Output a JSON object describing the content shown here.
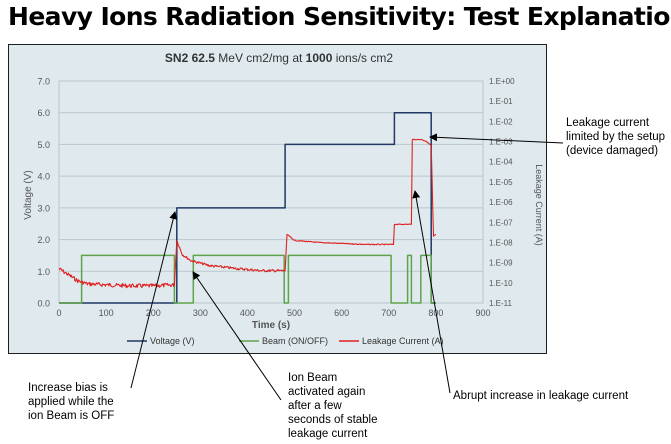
{
  "slide": {
    "title": "Heavy Ions Radiation Sensitivity: Test Explanation"
  },
  "chart_data": {
    "type": "line",
    "title": {
      "prefix": "SN2 ",
      "let_value": "62.5",
      "let_unit": " MeV cm2/mg at ",
      "flux_value": "1000",
      "flux_unit": " ions/s cm2"
    },
    "xlabel": "Time (s)",
    "ylabel_left": "Voltage (V)",
    "ylabel_right": "Leakage Current (A)",
    "xlim": [
      0,
      900
    ],
    "ylim_left": [
      0,
      7
    ],
    "ylim_right_log10": [
      -11,
      0
    ],
    "x_ticks": [
      "0",
      "100",
      "200",
      "300",
      "400",
      "500",
      "600",
      "700",
      "800",
      "900"
    ],
    "y_left_ticks": [
      "0.0",
      "1.0",
      "2.0",
      "3.0",
      "4.0",
      "5.0",
      "6.0",
      "7.0"
    ],
    "y_right_ticks": [
      "1.E-11",
      "1.E-10",
      "1.E-09",
      "1.E-08",
      "1.E-07",
      "1.E-06",
      "1.E-05",
      "1.E-04",
      "1.E-03",
      "1.E-02",
      "1.E-01",
      "1.E+00"
    ],
    "grid": "horizontal",
    "legend_position": "bottom",
    "series": [
      {
        "name": "Voltage (V)",
        "axis": "left",
        "color": "#1f3864",
        "points": [
          [
            0,
            0
          ],
          [
            250,
            0
          ],
          [
            250,
            3
          ],
          [
            480,
            3
          ],
          [
            480,
            5
          ],
          [
            712,
            5
          ],
          [
            712,
            6
          ],
          [
            790,
            6
          ],
          [
            790,
            0
          ],
          [
            800,
            0
          ]
        ]
      },
      {
        "name": "Beam (ON/OFF)",
        "axis": "left",
        "color": "#5ea34a",
        "points": [
          [
            0,
            0
          ],
          [
            48,
            0
          ],
          [
            48,
            1.5
          ],
          [
            245,
            1.5
          ],
          [
            245,
            0
          ],
          [
            285,
            0
          ],
          [
            285,
            1.5
          ],
          [
            478,
            1.5
          ],
          [
            478,
            0
          ],
          [
            487,
            0
          ],
          [
            487,
            1.5
          ],
          [
            705,
            1.5
          ],
          [
            705,
            0
          ],
          [
            740,
            0
          ],
          [
            740,
            1.5
          ],
          [
            748,
            1.5
          ],
          [
            748,
            0
          ],
          [
            768,
            0
          ],
          [
            768,
            1.5
          ],
          [
            790,
            1.5
          ],
          [
            790,
            0
          ],
          [
            800,
            0
          ]
        ]
      },
      {
        "name": "Leakage Current (A)",
        "axis": "right",
        "color": "#e02020",
        "points": [
          [
            0,
            -9.3
          ],
          [
            20,
            -9.6
          ],
          [
            40,
            -9.9
          ],
          [
            60,
            -10.05
          ],
          [
            100,
            -10.1
          ],
          [
            150,
            -10.15
          ],
          [
            200,
            -10.15
          ],
          [
            245,
            -10.1
          ],
          [
            250,
            -7.9
          ],
          [
            262,
            -8.6
          ],
          [
            280,
            -8.9
          ],
          [
            320,
            -9.15
          ],
          [
            380,
            -9.3
          ],
          [
            430,
            -9.4
          ],
          [
            480,
            -9.4
          ],
          [
            484,
            -7.6
          ],
          [
            500,
            -7.9
          ],
          [
            550,
            -8.0
          ],
          [
            600,
            -8.05
          ],
          [
            650,
            -8.1
          ],
          [
            710,
            -8.1
          ],
          [
            712,
            -7.1
          ],
          [
            748,
            -7.1
          ],
          [
            750,
            -2.9
          ],
          [
            770,
            -2.9
          ],
          [
            780,
            -3.0
          ],
          [
            790,
            -3.2
          ],
          [
            795,
            -7.7
          ],
          [
            800,
            -7.6
          ]
        ]
      }
    ]
  },
  "annotations": {
    "leakage_limited": "Leakage current limited by the setup (device damaged)",
    "increase_bias": "Increase bias is applied while the ion Beam is OFF",
    "ion_beam": "Ion Beam activated again after a few seconds of stable leakage current",
    "abrupt_increase": "Abrupt increase in leakage current"
  }
}
